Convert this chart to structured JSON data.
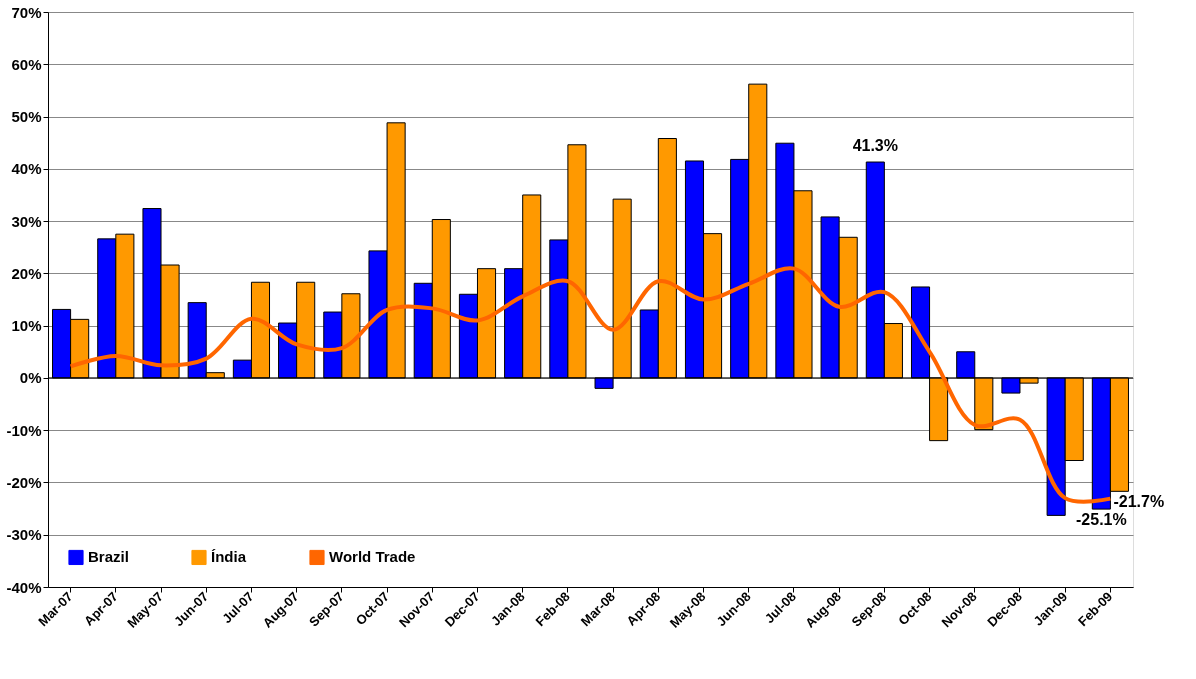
{
  "chart_data": {
    "type": "bar",
    "categories": [
      "Mar-07",
      "Apr-07",
      "May-07",
      "Jun-07",
      "Jul-07",
      "Aug-07",
      "Sep-07",
      "Oct-07",
      "Nov-07",
      "Dec-07",
      "Jan-08",
      "Feb-08",
      "Mar-08",
      "Apr-08",
      "May-08",
      "Jun-08",
      "Jul-08",
      "Aug-08",
      "Sep-08",
      "Oct-08",
      "Nov-08",
      "Dec-08",
      "Jan-09",
      "Feb-09"
    ],
    "series": [
      {
        "name": "Brazil",
        "color": "#0000ff",
        "values": [
          13.1,
          26.6,
          32.4,
          14.4,
          3.4,
          10.5,
          12.6,
          24.3,
          18.1,
          16.0,
          20.9,
          26.4,
          -2.0,
          13.0,
          41.5,
          41.8,
          44.9,
          30.8,
          41.3,
          17.4,
          5.0,
          -2.9,
          -26.3,
          -25.1
        ],
        "value_labels": [
          null,
          null,
          null,
          null,
          null,
          null,
          null,
          null,
          null,
          null,
          null,
          null,
          null,
          null,
          null,
          null,
          null,
          null,
          "41.3%",
          null,
          null,
          null,
          null,
          "-25.1%"
        ]
      },
      {
        "name": "Índia",
        "color": "#ff9900",
        "values": [
          11.2,
          27.5,
          21.6,
          1.0,
          18.3,
          18.3,
          16.1,
          48.8,
          30.3,
          20.9,
          35.0,
          44.6,
          34.2,
          45.8,
          27.6,
          56.2,
          35.8,
          26.9,
          10.4,
          -12.0,
          -9.9,
          -1.0,
          -15.8,
          -21.7
        ],
        "value_labels": [
          null,
          null,
          null,
          null,
          null,
          null,
          null,
          null,
          null,
          null,
          null,
          null,
          null,
          null,
          null,
          null,
          null,
          null,
          null,
          null,
          null,
          null,
          null,
          "-21.7%"
        ]
      },
      {
        "name": "World Trade",
        "type": "line",
        "color": "#ff6600",
        "values": [
          2.2,
          4.2,
          2.4,
          3.7,
          11.3,
          6.4,
          5.7,
          13.0,
          13.3,
          11.0,
          15.6,
          18.5,
          9.2,
          18.5,
          15.0,
          18.0,
          20.9,
          13.6,
          16.4,
          5.0,
          -9.0,
          -8.0,
          -23.0,
          -23.1
        ]
      }
    ],
    "ylim": [
      -40,
      70
    ],
    "yticks": [
      {
        "value": -40,
        "label": "-40%"
      },
      {
        "value": -30,
        "label": "-30%"
      },
      {
        "value": -20,
        "label": "-20%"
      },
      {
        "value": -10,
        "label": "-10%"
      },
      {
        "value": 0,
        "label": "0%"
      },
      {
        "value": 10,
        "label": "10%"
      },
      {
        "value": 20,
        "label": "20%"
      },
      {
        "value": 30,
        "label": "30%"
      },
      {
        "value": 40,
        "label": "40%"
      },
      {
        "value": 50,
        "label": "50%"
      },
      {
        "value": 60,
        "label": "60%"
      },
      {
        "value": 70,
        "label": "70%"
      }
    ],
    "grid": "y",
    "legend": "bottom left",
    "marker": "none",
    "line_style": "solid"
  }
}
